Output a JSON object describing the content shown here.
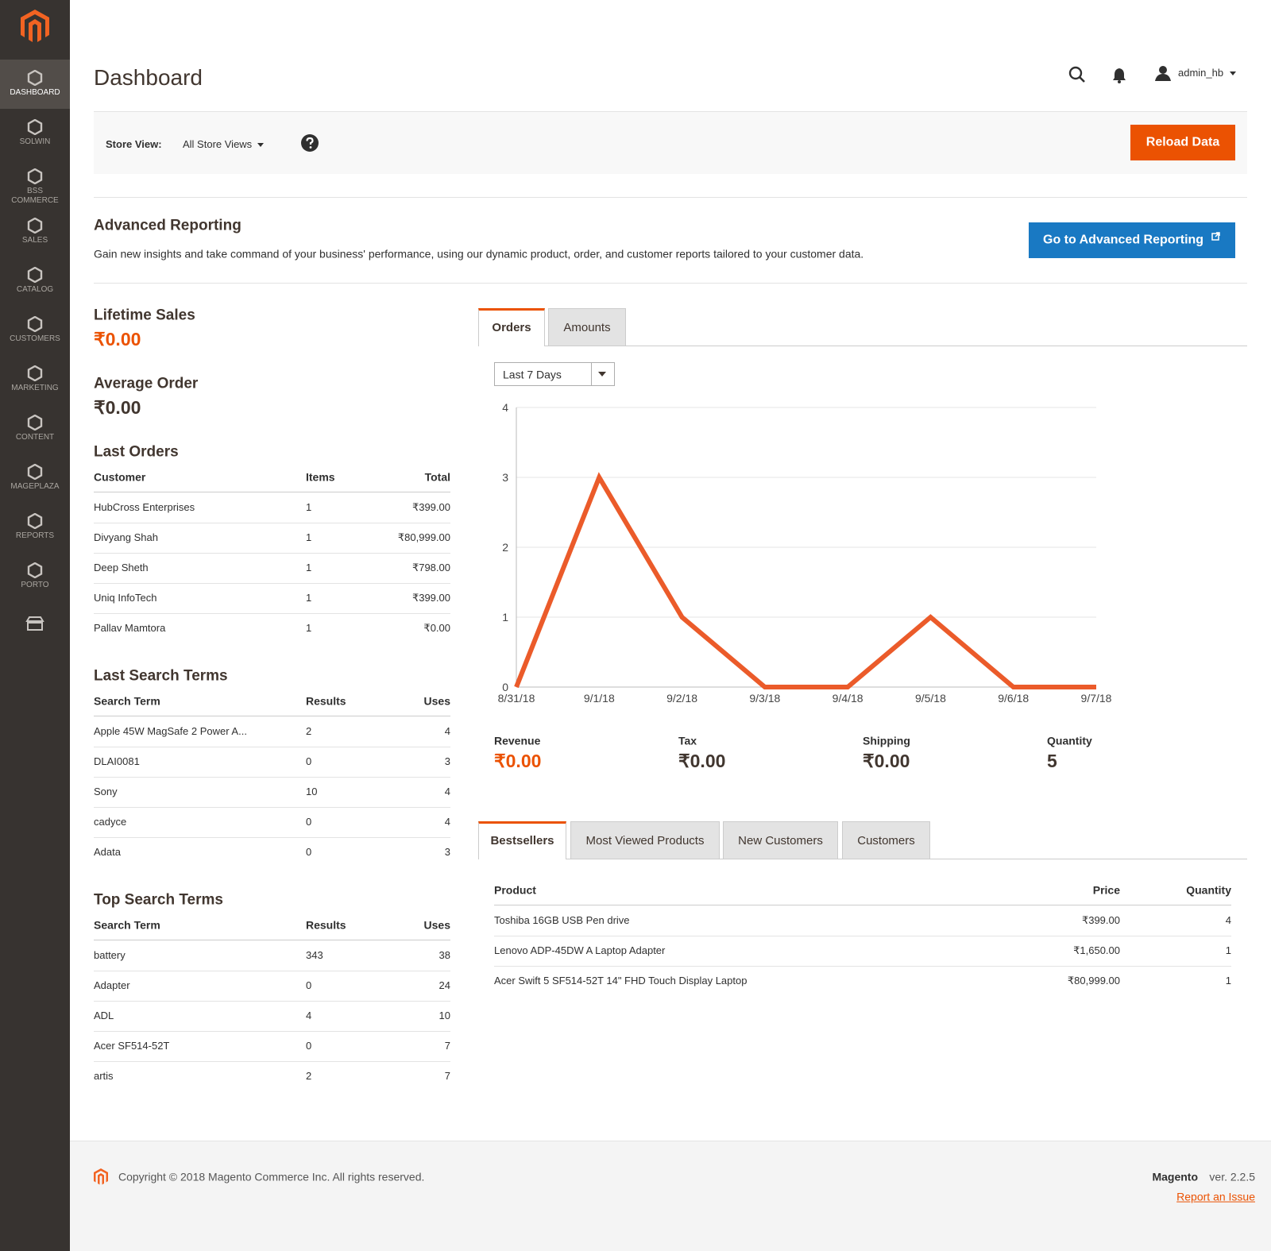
{
  "sidebar": {
    "items": [
      "DASHBOARD",
      "SOLWIN",
      "BSS COMMERCE",
      "SALES",
      "CATALOG",
      "CUSTOMERS",
      "MARKETING",
      "CONTENT",
      "MAGEPLAZA",
      "REPORTS",
      "PORTO"
    ]
  },
  "header": {
    "title": "Dashboard",
    "user": "admin_hb"
  },
  "store_view": {
    "label": "Store View:",
    "value": "All Store Views",
    "button": "Reload Data"
  },
  "advanced_reporting": {
    "title": "Advanced Reporting",
    "text": "Gain new insights and take command of your business' performance, using our dynamic product, order, and customer reports tailored to your customer data.",
    "button": "Go to Advanced Reporting"
  },
  "lifetime_sales": {
    "label": "Lifetime Sales",
    "value": "₹0.00"
  },
  "average_order": {
    "label": "Average Order",
    "value": "₹0.00"
  },
  "last_orders": {
    "title": "Last Orders",
    "columns": [
      "Customer",
      "Items",
      "Total"
    ],
    "rows": [
      [
        "HubCross Enterprises",
        "1",
        "₹399.00"
      ],
      [
        "Divyang Shah",
        "1",
        "₹80,999.00"
      ],
      [
        "Deep Sheth",
        "1",
        "₹798.00"
      ],
      [
        "Uniq InfoTech",
        "1",
        "₹399.00"
      ],
      [
        "Pallav Mamtora",
        "1",
        "₹0.00"
      ]
    ]
  },
  "last_search_terms": {
    "title": "Last Search Terms",
    "columns": [
      "Search Term",
      "Results",
      "Uses"
    ],
    "rows": [
      [
        "Apple 45W MagSafe 2 Power A...",
        "2",
        "4"
      ],
      [
        "DLAI0081",
        "0",
        "3"
      ],
      [
        "Sony",
        "10",
        "4"
      ],
      [
        "cadyce",
        "0",
        "4"
      ],
      [
        "Adata",
        "0",
        "3"
      ]
    ]
  },
  "top_search_terms": {
    "title": "Top Search Terms",
    "columns": [
      "Search Term",
      "Results",
      "Uses"
    ],
    "rows": [
      [
        "battery",
        "343",
        "38"
      ],
      [
        "Adapter",
        "0",
        "24"
      ],
      [
        "ADL",
        "4",
        "10"
      ],
      [
        "Acer SF514-52T",
        "0",
        "7"
      ],
      [
        "artis",
        "2",
        "7"
      ]
    ]
  },
  "chart_tabs": [
    "Orders",
    "Amounts"
  ],
  "period": "Last 7 Days",
  "chart_data": {
    "type": "line",
    "categories": [
      "8/31/18",
      "9/1/18",
      "9/2/18",
      "9/3/18",
      "9/4/18",
      "9/5/18",
      "9/6/18",
      "9/7/18"
    ],
    "values": [
      0,
      3,
      1,
      0,
      0,
      1,
      0,
      0
    ],
    "color": "#eb5b2a",
    "ylim": [
      0,
      4
    ],
    "yticks": [
      0,
      1,
      2,
      3,
      4
    ],
    "grid": true
  },
  "totals": [
    {
      "label": "Revenue",
      "value": "₹0.00"
    },
    {
      "label": "Tax",
      "value": "₹0.00"
    },
    {
      "label": "Shipping",
      "value": "₹0.00"
    },
    {
      "label": "Quantity",
      "value": "5"
    }
  ],
  "product_tabs": [
    "Bestsellers",
    "Most Viewed Products",
    "New Customers",
    "Customers"
  ],
  "bestsellers": {
    "columns": [
      "Product",
      "Price",
      "Quantity"
    ],
    "rows": [
      [
        "Toshiba 16GB USB Pen drive",
        "₹399.00",
        "4"
      ],
      [
        "Lenovo ADP-45DW A Laptop Adapter",
        "₹1,650.00",
        "1"
      ],
      [
        "Acer Swift 5 SF514-52T 14\" FHD Touch Display Laptop",
        "₹80,999.00",
        "1"
      ]
    ]
  },
  "footer": {
    "copyright": "Copyright © 2018 Magento Commerce Inc. All rights reserved.",
    "brand": "Magento",
    "version": "ver. 2.2.5",
    "report": "Report an Issue"
  }
}
